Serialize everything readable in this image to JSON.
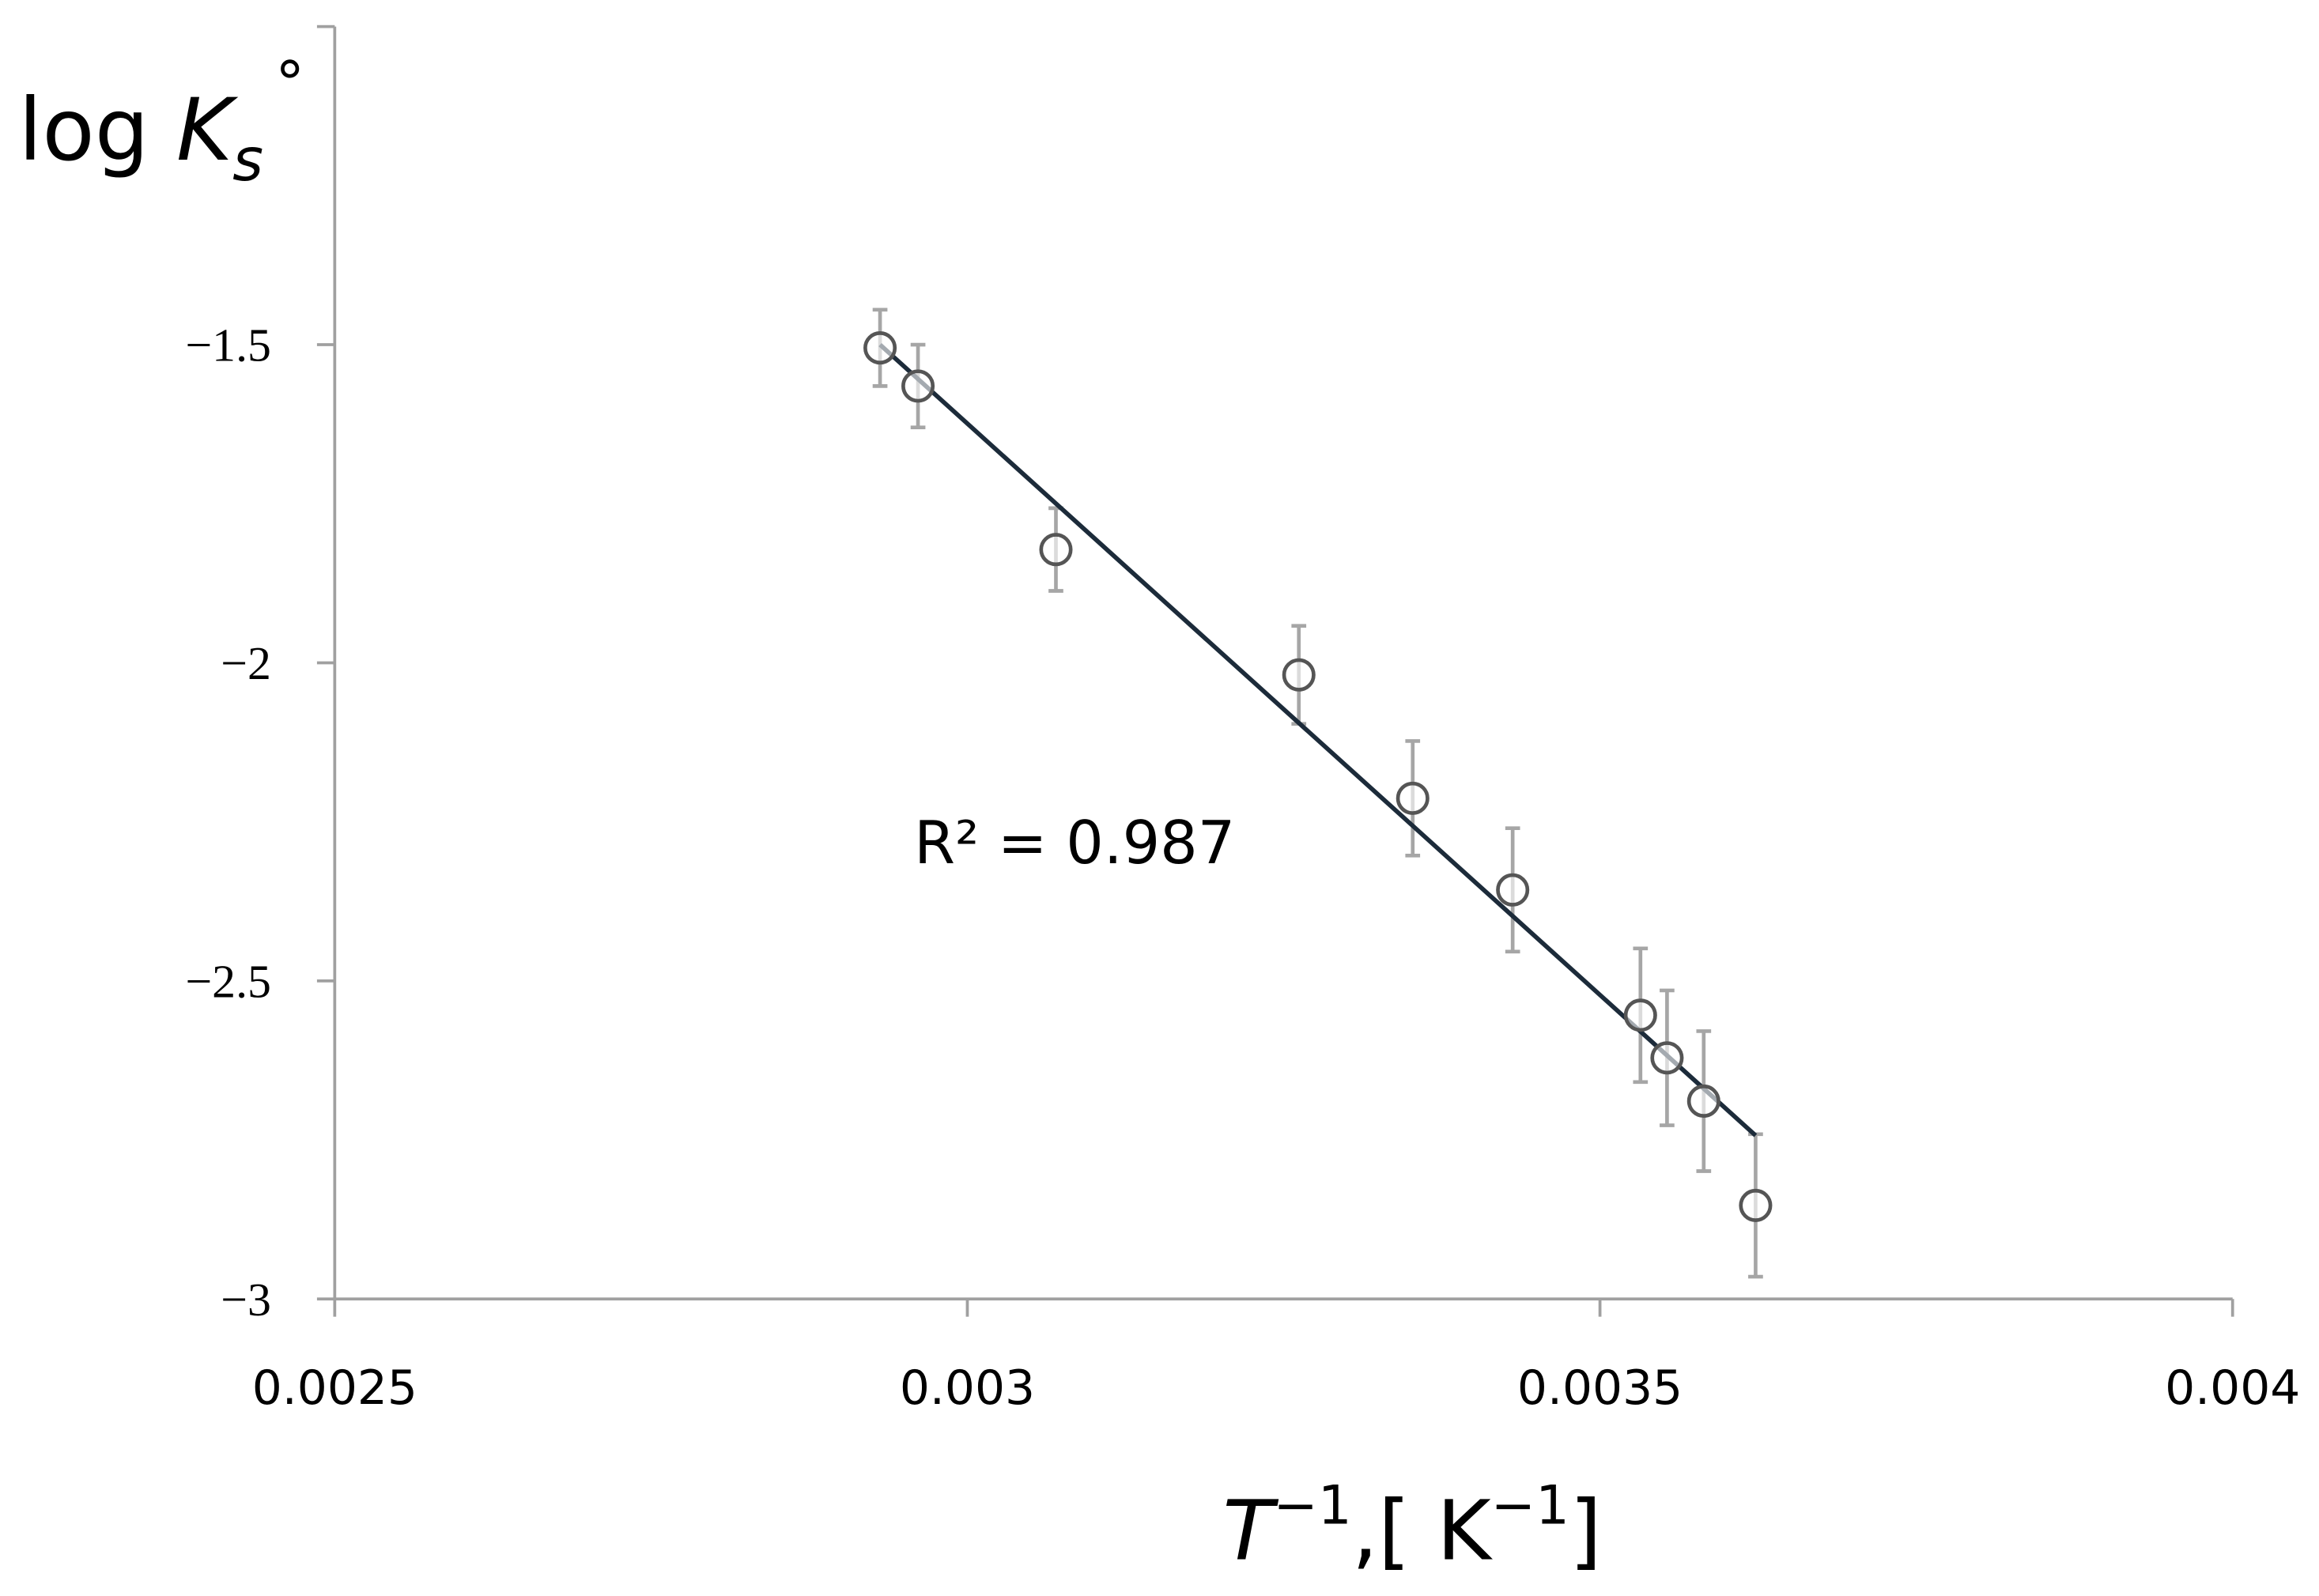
{
  "chart_data": {
    "type": "scatter",
    "x": [
      0.002931,
      0.002961,
      0.00307,
      0.003262,
      0.003352,
      0.003431,
      0.003532,
      0.003553,
      0.003582,
      0.003623
    ],
    "values": [
      -1.505,
      -1.565,
      -1.822,
      -2.019,
      -2.213,
      -2.357,
      -2.554,
      -2.621,
      -2.689,
      -2.853
    ],
    "errors": [
      0.06,
      0.065,
      0.065,
      0.077,
      0.09,
      0.097,
      0.105,
      0.106,
      0.11,
      0.112
    ],
    "color": "#555555",
    "error_color": "#a6a6a6",
    "trendline": {
      "x": [
        0.002931,
        0.003623
      ],
      "values": [
        -1.5,
        -2.743
      ],
      "color": "#1c2b3a"
    },
    "annotation": "R² = 0.987",
    "x_label": [
      "T",
      "−1",
      ",[ K",
      "−1",
      "]"
    ],
    "y_label": [
      "log ",
      "K",
      "s",
      "°"
    ],
    "xlim": [
      0.0025,
      0.004
    ],
    "ylim": [
      -3,
      -1
    ],
    "xticks": [
      0.0025,
      0.003,
      0.0035,
      0.004
    ],
    "yticks": [
      {
        "value": -3,
        "label": "−3"
      },
      {
        "value": -2.5,
        "label": "−2.5"
      },
      {
        "value": -2,
        "label": "−2"
      },
      {
        "value": -1.5,
        "label": "−1.5"
      }
    ]
  }
}
